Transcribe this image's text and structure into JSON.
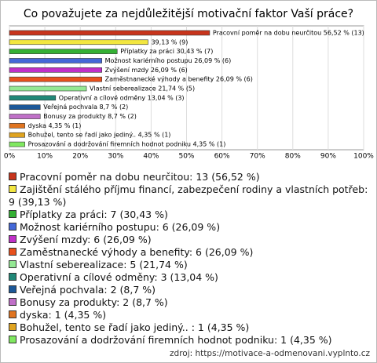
{
  "chart_data": {
    "type": "hbar",
    "title": "Co považujete za nejdůležitější motivační faktor Vaší práce?",
    "values": [
      56.52,
      39.13,
      30.43,
      26.09,
      26.09,
      26.09,
      21.74,
      13.04,
      8.7,
      8.7,
      4.35,
      4.35,
      4.35
    ],
    "value_labels": [
      "Pracovní poměr na dobu neurčitou 56,52 % (13)",
      "39,13 % (9)",
      "Příplatky za práci 30,43 % (7)",
      "Možnost kariérního postupu 26,09 % (6)",
      "Zvýšení mzdy 26,09 % (6)",
      "Zaměstnanecké výhody a benefity 26,09 % (6)",
      "Vlastní seberealizace 21,74 % (5)",
      "Operativní a cílové odměny 13,04 % (3)",
      "Veřejná pochvala 8,7 % (2)",
      "Bonusy za produkty 8,7 % (2)",
      "dyska 4,35 % (1)",
      "Bohužel, tento se řadí jako jediný..  4,35 % (1)",
      "Prosazování a dodržování firemních hodnot podniku 4,35 % (1)"
    ],
    "legend_labels": [
      "Pracovní poměr na dobu neurčitou: 13 (56,52 %)",
      "Zajištění stálého příjmu financí, zabezpečení rodiny a vlastních potřeb: 9 (39,13 %)",
      "Příplatky za práci: 7 (30,43 %)",
      "Možnost kariérního postupu: 6 (26,09 %)",
      "Zvýšení mzdy: 6 (26,09 %)",
      "Zaměstnanecké výhody a benefity: 6 (26,09 %)",
      "Vlastní seberealizace: 5 (21,74 %)",
      "Operativní a cílové odměny: 3 (13,04 %)",
      "Veřejná pochvala: 2 (8,7 %)",
      "Bonusy za produkty: 2 (8,7 %)",
      "dyska: 1 (4,35 %)",
      "Bohužel, tento se řadí jako jediný.. : 1 (4,35 %)",
      "Prosazování a dodržování firemních hodnot podniku: 1 (4,35 %)"
    ],
    "colors": [
      "#c8341c",
      "#f2e640",
      "#34b034",
      "#4468d8",
      "#c030c8",
      "#e8501c",
      "#94e894",
      "#208878",
      "#1c5898",
      "#c070c8",
      "#e07420",
      "#e0a420",
      "#80e860"
    ],
    "xlim": [
      0,
      100
    ],
    "xticks": [
      {
        "value": 0,
        "label": "0%"
      },
      {
        "value": 10,
        "label": "10%"
      },
      {
        "value": 20,
        "label": "20%"
      },
      {
        "value": 30,
        "label": "30%"
      },
      {
        "value": 40,
        "label": "40%"
      },
      {
        "value": 50,
        "label": "50%"
      },
      {
        "value": 60,
        "label": "60%"
      },
      {
        "value": 70,
        "label": "70%"
      },
      {
        "value": 80,
        "label": "80%"
      },
      {
        "value": 90,
        "label": "90%"
      },
      {
        "value": 100,
        "label": "100%"
      }
    ],
    "grid": true,
    "source": "zdroj: https://motivace-a-odmenovani.vyplnto.cz"
  }
}
